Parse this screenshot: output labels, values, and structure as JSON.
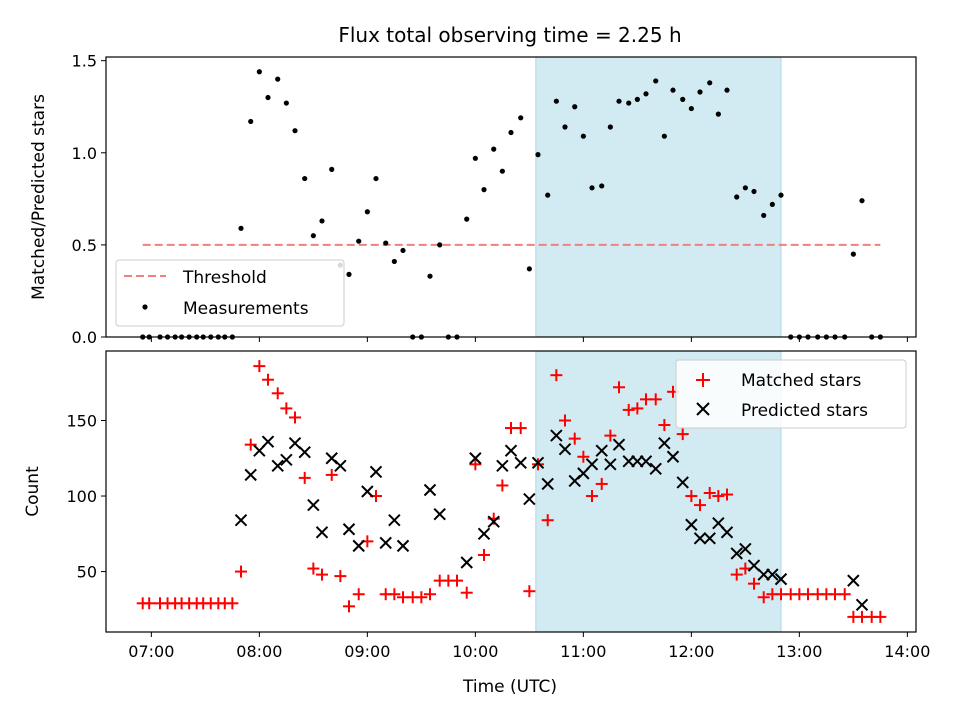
{
  "title": "Flux total observing time = 2.25 h",
  "chart_data": [
    {
      "type": "scatter",
      "ylabel": "Matched/Predicted stars",
      "ylim": [
        0,
        1.52
      ],
      "yticks": [
        0.0,
        0.5,
        1.0,
        1.5
      ],
      "ytick_labels": [
        "0.0",
        "0.5",
        "1.0",
        "1.5"
      ],
      "xlim": [
        6.58,
        14.08
      ],
      "shaded_span": {
        "x0": 10.56,
        "x1": 12.83,
        "color": "#add8e6"
      },
      "legend_position": "lower-left",
      "threshold": {
        "name": "Threshold",
        "y": 0.5,
        "x0": 6.92,
        "x1": 13.75,
        "color": "#f08080"
      },
      "series": [
        {
          "name": "Measurements",
          "color": "#000000",
          "points": [
            [
              6.92,
              0
            ],
            [
              6.98,
              0
            ],
            [
              7.08,
              0
            ],
            [
              7.15,
              0
            ],
            [
              7.22,
              0
            ],
            [
              7.28,
              0
            ],
            [
              7.35,
              0
            ],
            [
              7.42,
              0
            ],
            [
              7.48,
              0
            ],
            [
              7.55,
              0
            ],
            [
              7.62,
              0
            ],
            [
              7.68,
              0
            ],
            [
              7.75,
              0
            ],
            [
              7.83,
              0.59
            ],
            [
              7.92,
              1.17
            ],
            [
              8.0,
              1.44
            ],
            [
              8.08,
              1.3
            ],
            [
              8.17,
              1.4
            ],
            [
              8.25,
              1.27
            ],
            [
              8.33,
              1.12
            ],
            [
              8.42,
              0.86
            ],
            [
              8.5,
              0.55
            ],
            [
              8.58,
              0.63
            ],
            [
              8.67,
              0.91
            ],
            [
              8.75,
              0.39
            ],
            [
              8.83,
              0.34
            ],
            [
              8.92,
              0.52
            ],
            [
              9.0,
              0.68
            ],
            [
              9.08,
              0.86
            ],
            [
              9.17,
              0.51
            ],
            [
              9.25,
              0.41
            ],
            [
              9.33,
              0.47
            ],
            [
              9.42,
              0
            ],
            [
              9.5,
              0
            ],
            [
              9.58,
              0.33
            ],
            [
              9.67,
              0.5
            ],
            [
              9.75,
              0
            ],
            [
              9.83,
              0
            ],
            [
              9.92,
              0.64
            ],
            [
              10.0,
              0.97
            ],
            [
              10.08,
              0.8
            ],
            [
              10.17,
              1.02
            ],
            [
              10.25,
              0.9
            ],
            [
              10.33,
              1.11
            ],
            [
              10.42,
              1.19
            ],
            [
              10.5,
              0.37
            ],
            [
              10.58,
              0.99
            ],
            [
              10.67,
              0.77
            ],
            [
              10.75,
              1.28
            ],
            [
              10.83,
              1.14
            ],
            [
              10.92,
              1.25
            ],
            [
              11.0,
              1.09
            ],
            [
              11.08,
              0.81
            ],
            [
              11.17,
              0.82
            ],
            [
              11.25,
              1.14
            ],
            [
              11.33,
              1.28
            ],
            [
              11.42,
              1.27
            ],
            [
              11.5,
              1.29
            ],
            [
              11.58,
              1.32
            ],
            [
              11.67,
              1.39
            ],
            [
              11.75,
              1.09
            ],
            [
              11.83,
              1.34
            ],
            [
              11.92,
              1.29
            ],
            [
              12.0,
              1.24
            ],
            [
              12.08,
              1.33
            ],
            [
              12.17,
              1.38
            ],
            [
              12.25,
              1.21
            ],
            [
              12.33,
              1.34
            ],
            [
              12.42,
              0.76
            ],
            [
              12.5,
              0.81
            ],
            [
              12.58,
              0.79
            ],
            [
              12.67,
              0.66
            ],
            [
              12.75,
              0.72
            ],
            [
              12.83,
              0.77
            ],
            [
              12.92,
              0
            ],
            [
              13.0,
              0
            ],
            [
              13.08,
              0
            ],
            [
              13.17,
              0
            ],
            [
              13.25,
              0
            ],
            [
              13.33,
              0
            ],
            [
              13.42,
              0
            ],
            [
              13.5,
              0.45
            ],
            [
              13.58,
              0.74
            ],
            [
              13.67,
              0
            ],
            [
              13.75,
              0
            ]
          ]
        }
      ]
    },
    {
      "type": "scatter",
      "xlabel": "Time (UTC)",
      "ylabel": "Count",
      "ylim": [
        10,
        196
      ],
      "yticks": [
        50,
        100,
        150
      ],
      "ytick_labels": [
        "50",
        "100",
        "150"
      ],
      "xlim": [
        6.58,
        14.08
      ],
      "xticks": [
        7,
        8,
        9,
        10,
        11,
        12,
        13,
        14
      ],
      "xtick_labels": [
        "07:00",
        "08:00",
        "09:00",
        "10:00",
        "11:00",
        "12:00",
        "13:00",
        "14:00"
      ],
      "shaded_span": {
        "x0": 10.56,
        "x1": 12.83,
        "color": "#add8e6"
      },
      "legend_position": "upper-right",
      "series": [
        {
          "name": "Matched stars",
          "marker": "+",
          "color": "#ff0000",
          "points": [
            [
              6.92,
              29
            ],
            [
              6.98,
              29
            ],
            [
              7.08,
              29
            ],
            [
              7.15,
              29
            ],
            [
              7.22,
              29
            ],
            [
              7.28,
              29
            ],
            [
              7.35,
              29
            ],
            [
              7.42,
              29
            ],
            [
              7.48,
              29
            ],
            [
              7.55,
              29
            ],
            [
              7.62,
              29
            ],
            [
              7.68,
              29
            ],
            [
              7.75,
              29
            ],
            [
              7.83,
              50
            ],
            [
              7.92,
              134
            ],
            [
              8.0,
              186
            ],
            [
              8.08,
              177
            ],
            [
              8.17,
              168
            ],
            [
              8.25,
              158
            ],
            [
              8.33,
              152
            ],
            [
              8.42,
              112
            ],
            [
              8.5,
              52
            ],
            [
              8.58,
              48
            ],
            [
              8.67,
              114
            ],
            [
              8.75,
              47
            ],
            [
              8.83,
              27
            ],
            [
              8.92,
              35
            ],
            [
              9.0,
              70
            ],
            [
              9.08,
              100
            ],
            [
              9.17,
              35
            ],
            [
              9.25,
              35
            ],
            [
              9.33,
              33
            ],
            [
              9.42,
              33
            ],
            [
              9.5,
              33
            ],
            [
              9.58,
              35
            ],
            [
              9.67,
              44
            ],
            [
              9.75,
              44
            ],
            [
              9.83,
              44
            ],
            [
              9.92,
              36
            ],
            [
              10.0,
              121
            ],
            [
              10.08,
              61
            ],
            [
              10.17,
              85
            ],
            [
              10.25,
              107
            ],
            [
              10.33,
              145
            ],
            [
              10.42,
              145
            ],
            [
              10.5,
              37
            ],
            [
              10.58,
              121
            ],
            [
              10.67,
              84
            ],
            [
              10.75,
              180
            ],
            [
              10.83,
              150
            ],
            [
              10.92,
              138
            ],
            [
              11.0,
              126
            ],
            [
              11.08,
              100
            ],
            [
              11.17,
              108
            ],
            [
              11.25,
              140
            ],
            [
              11.33,
              172
            ],
            [
              11.42,
              157
            ],
            [
              11.5,
              158
            ],
            [
              11.58,
              164
            ],
            [
              11.67,
              164
            ],
            [
              11.75,
              147
            ],
            [
              11.83,
              169
            ],
            [
              11.92,
              141
            ],
            [
              12.0,
              100
            ],
            [
              12.08,
              94
            ],
            [
              12.17,
              102
            ],
            [
              12.25,
              100
            ],
            [
              12.33,
              101
            ],
            [
              12.42,
              48
            ],
            [
              12.5,
              52
            ],
            [
              12.58,
              42
            ],
            [
              12.67,
              33
            ],
            [
              12.75,
              35
            ],
            [
              12.83,
              35
            ],
            [
              12.92,
              35
            ],
            [
              13.0,
              35
            ],
            [
              13.08,
              35
            ],
            [
              13.17,
              35
            ],
            [
              13.25,
              35
            ],
            [
              13.33,
              35
            ],
            [
              13.42,
              35
            ],
            [
              13.5,
              20
            ],
            [
              13.58,
              20
            ],
            [
              13.67,
              20
            ],
            [
              13.75,
              20
            ]
          ]
        },
        {
          "name": "Predicted stars",
          "marker": "x",
          "color": "#000000",
          "points": [
            [
              7.83,
              84
            ],
            [
              7.92,
              114
            ],
            [
              8.0,
              130
            ],
            [
              8.08,
              136
            ],
            [
              8.17,
              120
            ],
            [
              8.25,
              124
            ],
            [
              8.33,
              135
            ],
            [
              8.42,
              129
            ],
            [
              8.5,
              94
            ],
            [
              8.58,
              76
            ],
            [
              8.67,
              125
            ],
            [
              8.75,
              120
            ],
            [
              8.83,
              78
            ],
            [
              8.92,
              67
            ],
            [
              9.0,
              103
            ],
            [
              9.08,
              116
            ],
            [
              9.17,
              69
            ],
            [
              9.25,
              84
            ],
            [
              9.33,
              67
            ],
            [
              9.58,
              104
            ],
            [
              9.67,
              88
            ],
            [
              9.92,
              56
            ],
            [
              10.0,
              125
            ],
            [
              10.08,
              75
            ],
            [
              10.17,
              83
            ],
            [
              10.25,
              120
            ],
            [
              10.33,
              130
            ],
            [
              10.42,
              122
            ],
            [
              10.5,
              98
            ],
            [
              10.58,
              122
            ],
            [
              10.67,
              108
            ],
            [
              10.75,
              140
            ],
            [
              10.83,
              131
            ],
            [
              10.92,
              110
            ],
            [
              11.0,
              115
            ],
            [
              11.08,
              121
            ],
            [
              11.17,
              130
            ],
            [
              11.25,
              121
            ],
            [
              11.33,
              134
            ],
            [
              11.42,
              123
            ],
            [
              11.5,
              123
            ],
            [
              11.58,
              123
            ],
            [
              11.67,
              118
            ],
            [
              11.75,
              135
            ],
            [
              11.83,
              126
            ],
            [
              11.92,
              109
            ],
            [
              12.0,
              81
            ],
            [
              12.08,
              72
            ],
            [
              12.17,
              72
            ],
            [
              12.25,
              82
            ],
            [
              12.33,
              76
            ],
            [
              12.42,
              62
            ],
            [
              12.5,
              65
            ],
            [
              12.58,
              54
            ],
            [
              12.67,
              48
            ],
            [
              12.75,
              48
            ],
            [
              12.83,
              45
            ],
            [
              13.5,
              44
            ],
            [
              13.58,
              28
            ]
          ]
        }
      ]
    }
  ]
}
